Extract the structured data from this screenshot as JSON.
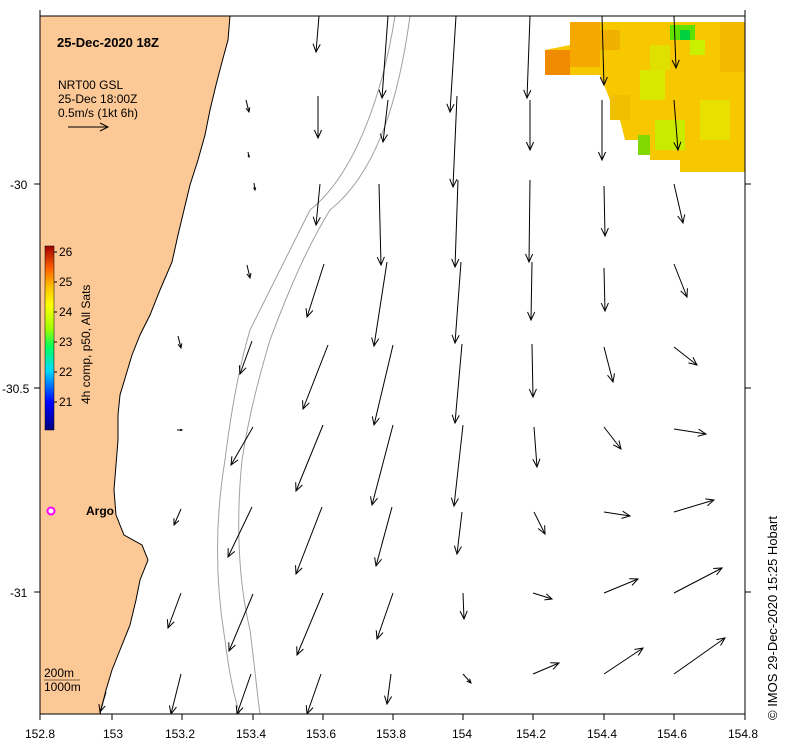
{
  "map": {
    "date_title": "25-Dec-2020 18Z",
    "product_line1": "NRT00 GSL",
    "product_line2": "25-Dec 18:00Z",
    "scale_text": "0.5m/s (1kt 6h)",
    "credit": "© IMOS 29-Dec-2020 15:25 Hobart",
    "place_label": "Argo",
    "depth_label_1": "200m",
    "depth_label_2": "1000m",
    "colorbar": {
      "label": "4h comp, p50, All Sats",
      "ticks": [
        "26",
        "25",
        "24",
        "23",
        "22",
        "21"
      ]
    },
    "x_ticks": [
      "152.8",
      "153",
      "153.2",
      "153.4",
      "153.6",
      "153.8",
      "154",
      "154.2",
      "154.4",
      "154.6",
      "154.8"
    ],
    "y_ticks": [
      "-30",
      "-30.5",
      "-31"
    ],
    "colors": {
      "land": "#fcc896",
      "ocean": "#ffffff",
      "argo_marker": "#ff00ff",
      "arrow": "#000000"
    }
  }
}
